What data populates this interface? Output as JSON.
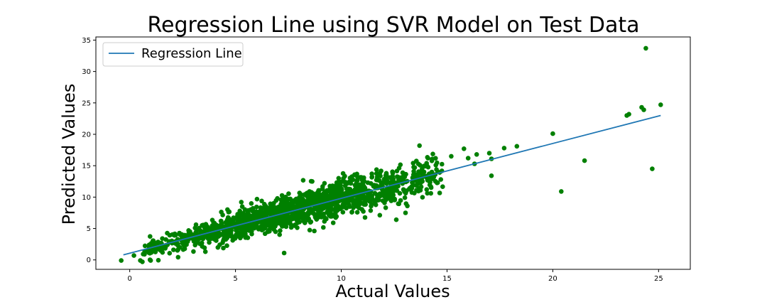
{
  "chart_data": {
    "type": "scatter",
    "title": "Regression Line using SVR Model on Test Data",
    "xlabel": "Actual Values",
    "ylabel": "Predicted Values",
    "xlim": [
      -1.6,
      26.5
    ],
    "ylim": [
      -1.5,
      35.5
    ],
    "xticks": [
      0,
      5,
      10,
      15,
      20,
      25
    ],
    "yticks": [
      0,
      5,
      10,
      15,
      20,
      25,
      30,
      35
    ],
    "grid": false,
    "legend": {
      "position": "top-left",
      "entries": [
        "Regression Line"
      ]
    },
    "colors": {
      "points": "#008000",
      "line": "#1f77b4"
    },
    "regression_line": {
      "name": "Regression Line",
      "x": [
        -0.3,
        25.1
      ],
      "y": [
        0.8,
        23.0
      ]
    },
    "outliers": {
      "x": [
        24.4,
        24.2,
        24.3,
        25.1,
        23.6,
        23.5,
        20.0,
        21.5,
        24.7,
        20.4,
        18.3,
        17.7,
        17.1,
        17.0,
        16.4,
        16.0,
        15.8,
        15.2,
        13.7,
        14.1,
        14.5,
        13.4,
        16.3,
        17.1,
        12.6,
        7.3,
        -0.4,
        0.6,
        0.5,
        0.2
      ],
      "y": [
        33.7,
        24.3,
        23.9,
        24.7,
        23.2,
        23.0,
        20.1,
        15.8,
        14.5,
        10.9,
        18.1,
        17.8,
        16.1,
        17.0,
        16.8,
        16.2,
        17.7,
        16.5,
        18.2,
        16.2,
        14.4,
        15.4,
        15.3,
        13.4,
        6.4,
        1.1,
        -0.1,
        -0.3,
        -0.1,
        0.7
      ]
    },
    "cloud": {
      "n": 1500,
      "x_min": 0.6,
      "x_max": 14.8,
      "slope": 0.874,
      "intercept": 1.06,
      "spread": 1.25,
      "seed": 7
    }
  }
}
